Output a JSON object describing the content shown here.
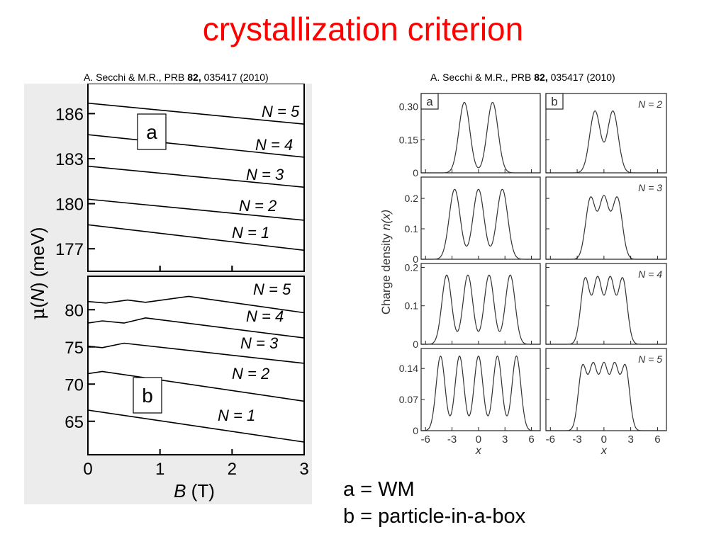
{
  "title": "crystallization criterion",
  "citation_left": {
    "pre": "A. Secchi & M.R., PRB ",
    "vol": "82,",
    "post": " 035417 (2010)"
  },
  "citation_right": {
    "pre": "A. Secchi & M.R., PRB ",
    "vol": "82,",
    "post": " 035417 (2010)"
  },
  "captions": [
    "a = WM",
    "b = particle-in-a-box"
  ],
  "chart_data": [
    {
      "type": "line",
      "panel": "a",
      "xlabel_var": "B",
      "xlabel_unit": "(T)",
      "ylabel_mu": "μ",
      "ylabel_var": "N",
      "ylabel_unit": "(meV)",
      "xlim": [
        0,
        3
      ],
      "ylim": [
        175.5,
        188
      ],
      "x_ticks": [
        "0",
        "1",
        "2",
        "3"
      ],
      "y_ticks": [
        177,
        180,
        183,
        186
      ],
      "series": [
        {
          "name": "N = 1",
          "x": [
            0,
            3
          ],
          "y": [
            178.6,
            176.9
          ]
        },
        {
          "name": "N = 2",
          "x": [
            0,
            3
          ],
          "y": [
            180.3,
            178.9
          ]
        },
        {
          "name": "N = 3",
          "x": [
            0,
            3
          ],
          "y": [
            182.5,
            181.1
          ]
        },
        {
          "name": "N = 4",
          "x": [
            0,
            3
          ],
          "y": [
            184.6,
            183.1
          ]
        },
        {
          "name": "N = 5",
          "x": [
            0,
            3
          ],
          "y": [
            186.7,
            185.3
          ]
        }
      ]
    },
    {
      "type": "line",
      "panel": "b",
      "xlim": [
        0,
        3
      ],
      "ylim": [
        60.5,
        84.5
      ],
      "x_ticks": [
        "0",
        "1",
        "2",
        "3"
      ],
      "y_ticks": [
        65,
        70,
        75,
        80
      ],
      "series": [
        {
          "name": "N = 1",
          "x": [
            0,
            3
          ],
          "y": [
            66.5,
            62.2
          ]
        },
        {
          "name": "N = 2",
          "x": [
            0,
            0.2,
            3
          ],
          "y": [
            71.4,
            71.7,
            67.7
          ]
        },
        {
          "name": "N = 3",
          "x": [
            0,
            0.2,
            0.5,
            3
          ],
          "y": [
            75.1,
            74.9,
            75.5,
            72.8
          ]
        },
        {
          "name": "N = 4",
          "x": [
            0,
            0.2,
            0.5,
            0.8,
            3
          ],
          "y": [
            78.2,
            78.5,
            78.2,
            78.9,
            76.2
          ]
        },
        {
          "name": "N = 5",
          "x": [
            0,
            0.25,
            0.55,
            0.8,
            1.4,
            3
          ],
          "y": [
            81.1,
            80.9,
            81.3,
            81.0,
            81.8,
            79.6
          ]
        }
      ]
    },
    {
      "type": "line",
      "description": "Charge density n(x) vs x, WM (panel a) and particle-in-a-box (panel b), N = 2..5",
      "ylabel_pre": "Charge density ",
      "ylabel_var": "n(x)",
      "xlabel": "x",
      "xlim": [
        -6.5,
        7
      ],
      "x_ticks": [
        "-6",
        "-3",
        "0",
        "3",
        "6"
      ],
      "column_labels": [
        "a",
        "b"
      ],
      "rows": [
        {
          "label": "N = 2",
          "ylim": [
            0,
            0.36
          ],
          "y_ticks": [
            "0",
            "0.15",
            "0.30"
          ],
          "y_tick_values": [
            0,
            0.15,
            0.3
          ],
          "wm": {
            "centers": [
              -1.6,
              1.6
            ],
            "width": 0.62,
            "amp": 0.32
          },
          "box": {
            "centers": [
              -1.0,
              1.0
            ],
            "width": 0.6,
            "amp": 0.28
          }
        },
        {
          "label": "N = 3",
          "ylim": [
            0,
            0.27
          ],
          "y_ticks": [
            "0",
            "0.1",
            "0.2"
          ],
          "y_tick_values": [
            0,
            0.1,
            0.2
          ],
          "wm": {
            "centers": [
              -2.7,
              0,
              2.7
            ],
            "width": 0.62,
            "amp": 0.23
          },
          "box": {
            "centers": [
              -1.5,
              0,
              1.5
            ],
            "width": 0.55,
            "amp": 0.2
          }
        },
        {
          "label": "N = 4",
          "ylim": [
            0,
            0.21
          ],
          "y_ticks": [
            "0",
            "0.1",
            "0.2"
          ],
          "y_tick_values": [
            0,
            0.1,
            0.2
          ],
          "wm": {
            "centers": [
              -3.6,
              -1.2,
              1.2,
              3.6
            ],
            "width": 0.55,
            "amp": 0.18
          },
          "box": {
            "centers": [
              -2.1,
              -0.7,
              0.7,
              2.1
            ],
            "width": 0.5,
            "amp": 0.17
          }
        },
        {
          "label": "N = 5",
          "ylim": [
            0,
            0.185
          ],
          "y_ticks": [
            "0",
            "0.07",
            "0.14"
          ],
          "y_tick_values": [
            0,
            0.07,
            0.14
          ],
          "wm": {
            "centers": [
              -4.3,
              -2.15,
              0,
              2.15,
              4.3
            ],
            "width": 0.5,
            "amp": 0.168
          },
          "box": {
            "centers": [
              -2.4,
              -1.2,
              0,
              1.2,
              2.4
            ],
            "width": 0.47,
            "amp": 0.143
          }
        }
      ]
    }
  ]
}
